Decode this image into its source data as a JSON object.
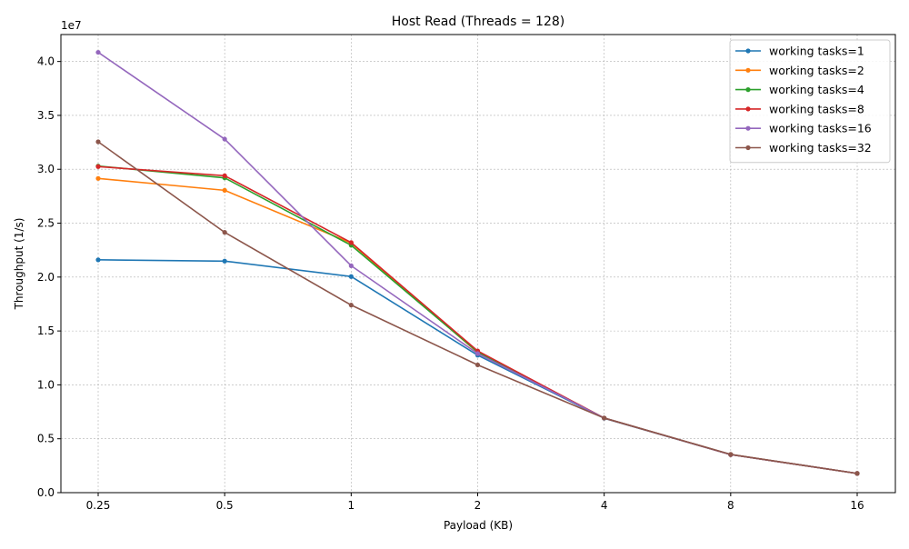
{
  "chart_data": {
    "type": "line",
    "title": "Host Read (Threads = 128)",
    "xlabel": "Payload (KB)",
    "ylabel": "Throughput (1/s)",
    "y_offset_label": "1e7",
    "categories": [
      "0.25",
      "0.5",
      "1",
      "2",
      "4",
      "8",
      "16"
    ],
    "yticks": [
      "0.0",
      "0.5",
      "1.0",
      "1.5",
      "2.0",
      "2.5",
      "3.0",
      "3.5",
      "4.0"
    ],
    "ylim": [
      0,
      42500000
    ],
    "grid": true,
    "legend_position": "top-right",
    "series": [
      {
        "name": "working tasks=1",
        "color": "#1f77b4",
        "values": [
          21600000,
          21480000,
          20050000,
          12750000,
          6900000,
          3530000,
          1780000
        ]
      },
      {
        "name": "working tasks=2",
        "color": "#ff7f0e",
        "values": [
          29150000,
          28050000,
          23150000,
          13000000,
          6920000,
          3530000,
          1780000
        ]
      },
      {
        "name": "working tasks=4",
        "color": "#2ca02c",
        "values": [
          30300000,
          29200000,
          22950000,
          13050000,
          6920000,
          3530000,
          1780000
        ]
      },
      {
        "name": "working tasks=8",
        "color": "#d62728",
        "values": [
          30250000,
          29400000,
          23200000,
          13150000,
          6920000,
          3530000,
          1780000
        ]
      },
      {
        "name": "working tasks=16",
        "color": "#9467bd",
        "values": [
          40850000,
          32800000,
          21050000,
          12900000,
          6920000,
          3530000,
          1780000
        ]
      },
      {
        "name": "working tasks=32",
        "color": "#8c564b",
        "values": [
          32550000,
          24150000,
          17400000,
          11850000,
          6920000,
          3550000,
          1780000
        ]
      }
    ]
  }
}
